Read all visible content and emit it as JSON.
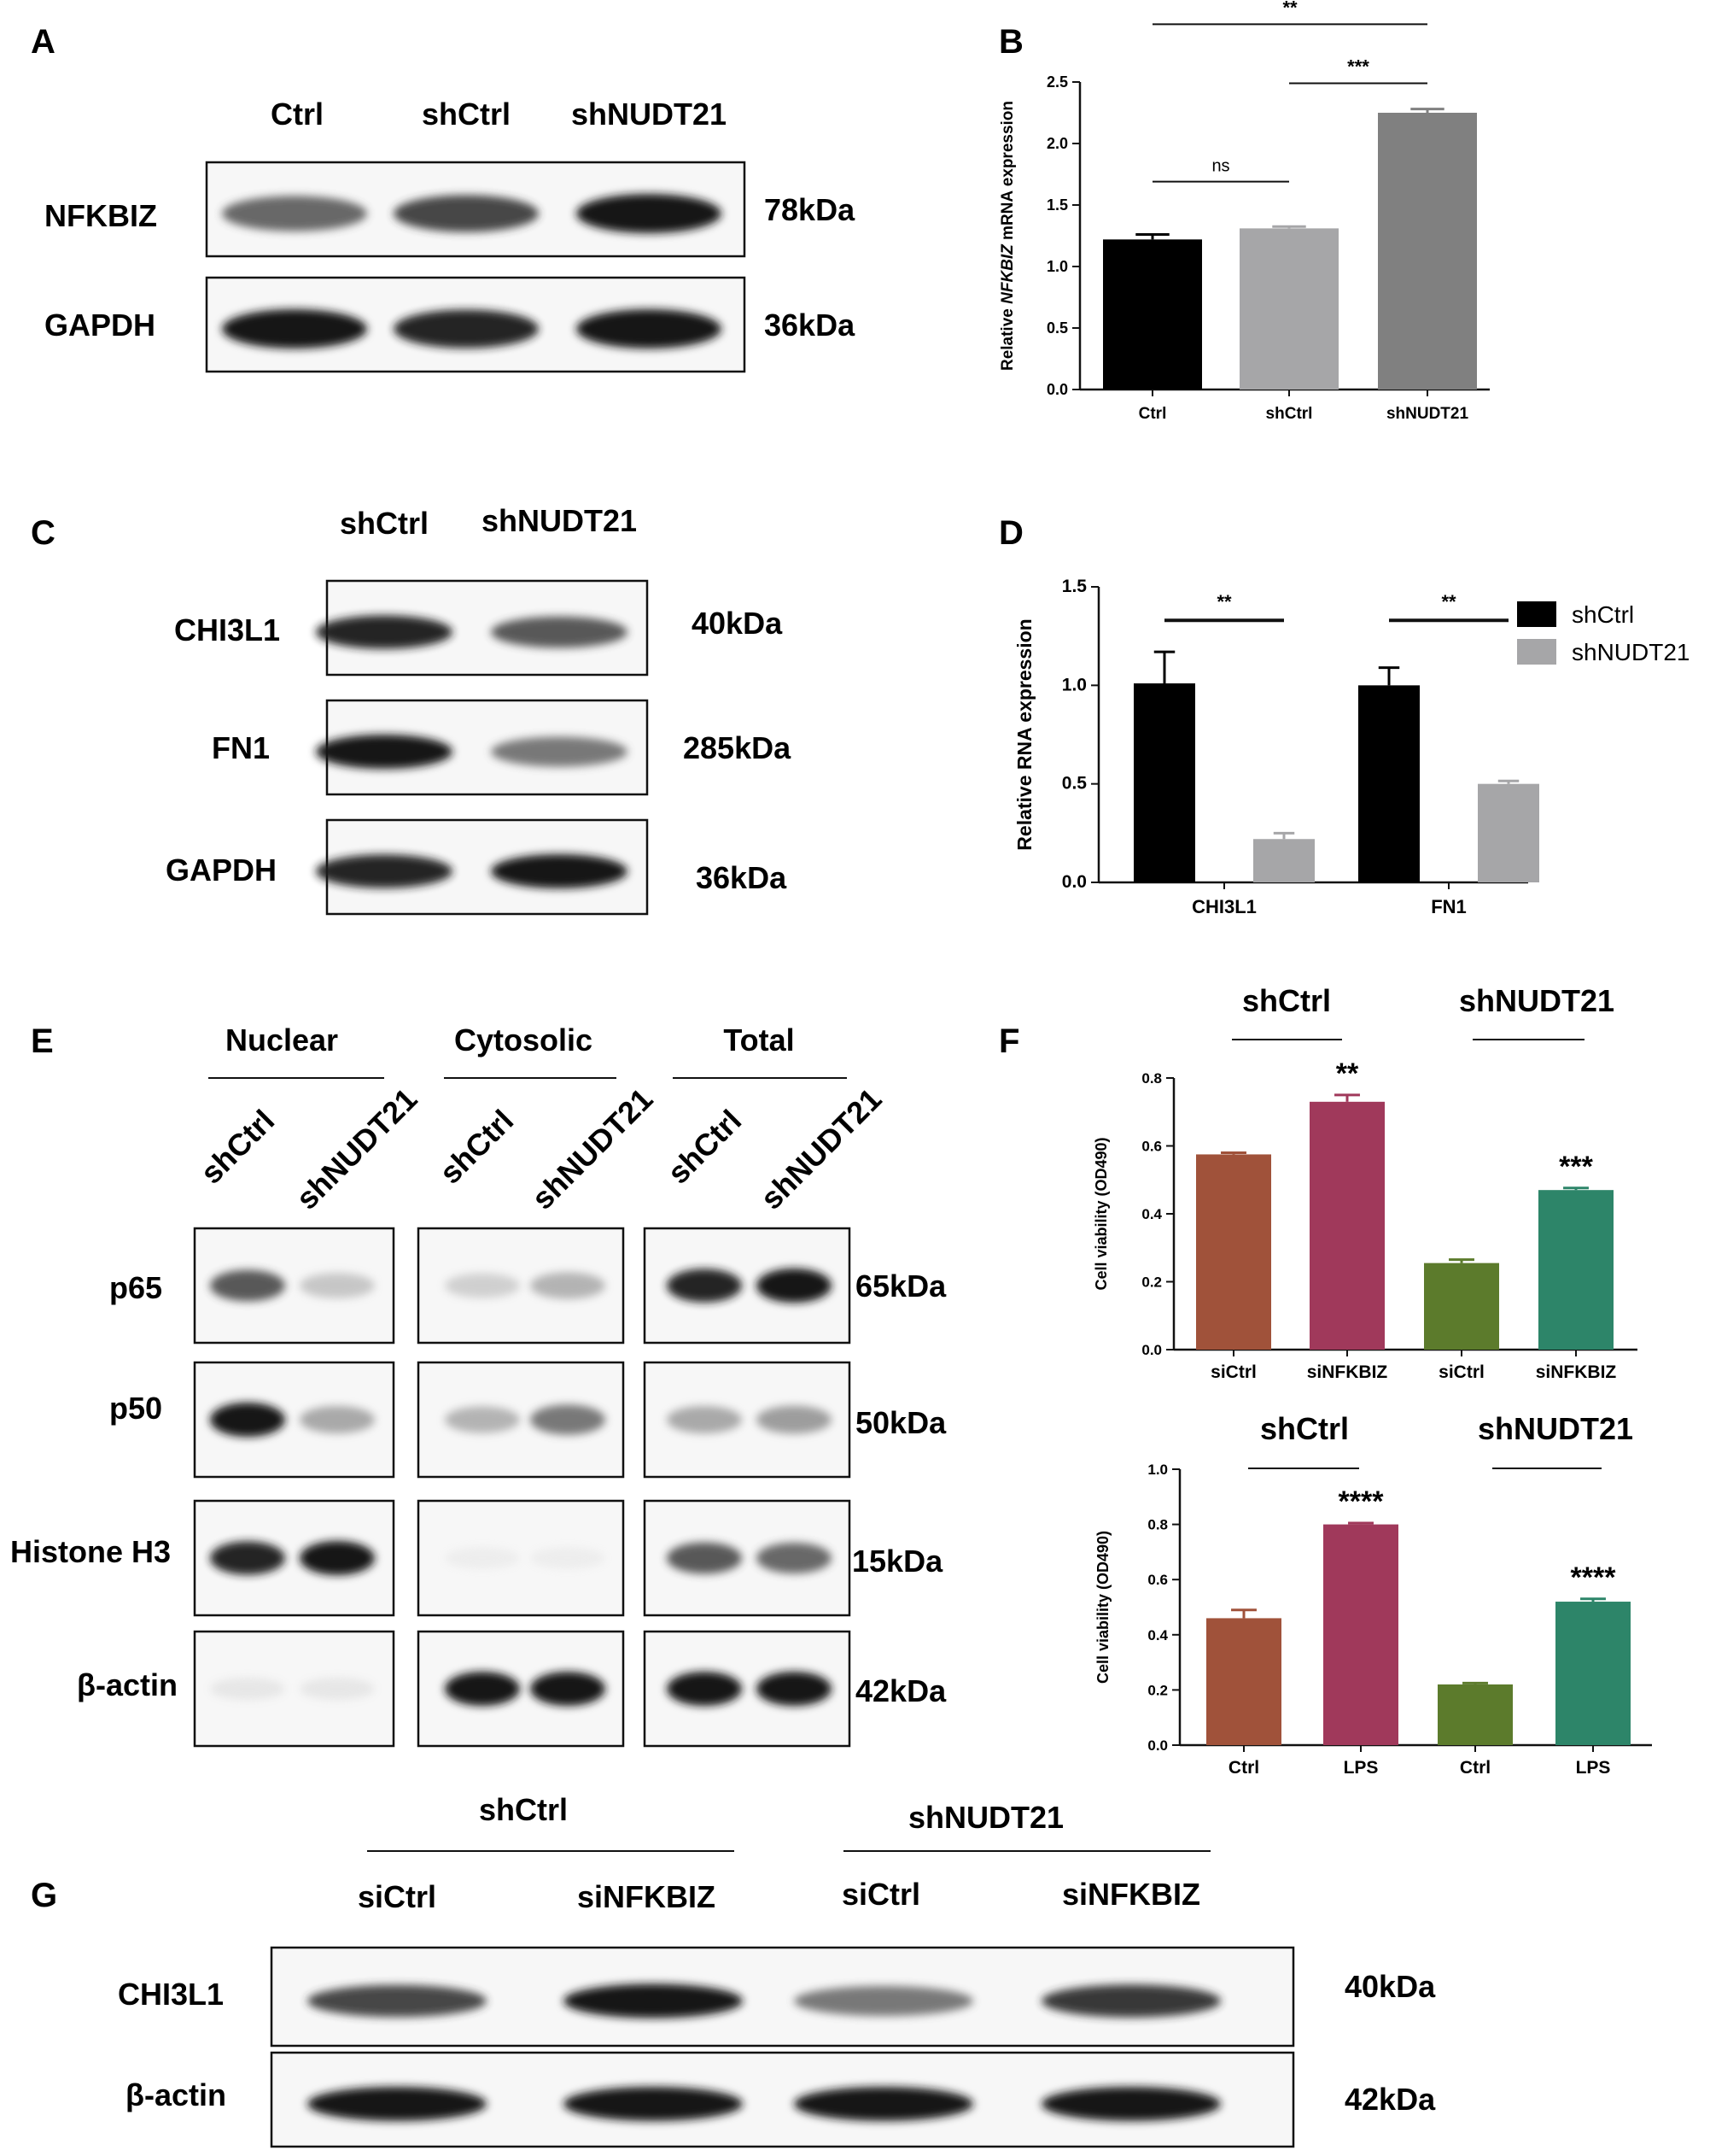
{
  "panels": {
    "A": "A",
    "B": "B",
    "C": "C",
    "D": "D",
    "E": "E",
    "F": "F",
    "G": "G"
  },
  "blotA": {
    "lanes": [
      "Ctrl",
      "shCtrl",
      "shNUDT21"
    ],
    "rows": [
      {
        "label": "NFKBIZ",
        "kda": "78kDa",
        "intensity": [
          0.75,
          0.85,
          1.0
        ]
      },
      {
        "label": "GAPDH",
        "kda": "36kDa",
        "intensity": [
          1.0,
          0.95,
          1.0
        ]
      }
    ]
  },
  "blotC": {
    "lanes": [
      "shCtrl",
      "shNUDT21"
    ],
    "rows": [
      {
        "label": "CHI3L1",
        "kda": "40kDa",
        "intensity": [
          0.95,
          0.8
        ]
      },
      {
        "label": "FN1",
        "kda": "285kDa",
        "intensity": [
          1.0,
          0.7
        ]
      },
      {
        "label": "GAPDH",
        "kda": "36kDa",
        "intensity": [
          0.95,
          1.0
        ]
      }
    ]
  },
  "blotE": {
    "groups": [
      "Nuclear",
      "Cytosolic",
      "Total"
    ],
    "lanes": [
      "shCtrl",
      "shNUDT21"
    ],
    "rows": [
      {
        "label": "p65",
        "kda": "65kDa",
        "intensity": [
          [
            0.8,
            0.35
          ],
          [
            0.3,
            0.45
          ],
          [
            0.95,
            1.0
          ]
        ]
      },
      {
        "label": "p50",
        "kda": "50kDa",
        "intensity": [
          [
            1.0,
            0.5
          ],
          [
            0.45,
            0.7
          ],
          [
            0.5,
            0.55
          ]
        ]
      },
      {
        "label": "Histone H3",
        "kda": "15kDa",
        "intensity": [
          [
            0.95,
            1.0
          ],
          [
            0.06,
            0.06
          ],
          [
            0.8,
            0.75
          ]
        ]
      },
      {
        "label": "β-actin",
        "kda": "42kDa",
        "intensity": [
          [
            0.12,
            0.12
          ],
          [
            1.0,
            1.0
          ],
          [
            1.0,
            1.0
          ]
        ]
      }
    ]
  },
  "blotG": {
    "groups": [
      "shCtrl",
      "shNUDT21"
    ],
    "lanes": [
      "siCtrl",
      "siNFKBIZ",
      "siCtrl",
      "siNFKBIZ"
    ],
    "rows": [
      {
        "label": "CHI3L1",
        "kda": "40kDa",
        "intensity": [
          0.85,
          1.0,
          0.7,
          0.9
        ]
      },
      {
        "label": "β-actin",
        "kda": "42kDa",
        "intensity": [
          1.0,
          1.0,
          1.0,
          1.0
        ]
      }
    ]
  },
  "chart_data": [
    {
      "panel": "B",
      "type": "bar",
      "categories": [
        "Ctrl",
        "shCtrl",
        "shNUDT21"
      ],
      "values": [
        1.22,
        1.31,
        2.25
      ],
      "errors": [
        0.04,
        0.015,
        0.03
      ],
      "colors": [
        "#000000",
        "#a6a6a8",
        "#808080"
      ],
      "ylabel": "Relative NFKBIZ mRNA expression",
      "ylim": [
        0,
        2.5
      ],
      "yticks": [
        "0.0",
        "0.5",
        "1.0",
        "1.5",
        "2.0",
        "2.5"
      ],
      "significance": [
        {
          "from": "Ctrl",
          "to": "shCtrl",
          "label": "ns",
          "y": 1.69
        },
        {
          "from": "shCtrl",
          "to": "shNUDT21",
          "label": "***",
          "y": 2.49
        },
        {
          "from": "Ctrl",
          "to": "shNUDT21",
          "label": "**",
          "y": 2.97
        }
      ]
    },
    {
      "panel": "D",
      "type": "bar",
      "categories": [
        "CHI3L1",
        "FN1"
      ],
      "series": [
        {
          "name": "shCtrl",
          "values": [
            1.01,
            1.0
          ],
          "errors": [
            0.16,
            0.09
          ],
          "color": "#000000"
        },
        {
          "name": "shNUDT21",
          "values": [
            0.22,
            0.5
          ],
          "errors": [
            0.03,
            0.015
          ],
          "color": "#a6a6a8"
        }
      ],
      "ylabel": "Relative RNA expression",
      "ylim": [
        0,
        1.5
      ],
      "yticks": [
        "0.0",
        "0.5",
        "1.0",
        "1.5"
      ],
      "legend": "top-right",
      "significance": [
        {
          "category": "CHI3L1",
          "label": "**",
          "y": 1.33
        },
        {
          "category": "FN1",
          "label": "**",
          "y": 1.33
        }
      ]
    },
    {
      "panel": "F-top",
      "type": "bar",
      "groups": [
        "shCtrl",
        "shNUDT21"
      ],
      "categories": [
        "siCtrl",
        "siNFKBIZ",
        "siCtrl",
        "siNFKBIZ"
      ],
      "values": [
        0.575,
        0.73,
        0.255,
        0.47
      ],
      "errors": [
        0.005,
        0.02,
        0.01,
        0.006
      ],
      "colors": [
        "#a0523a",
        "#a0395b",
        "#5c7b2c",
        "#2d8569"
      ],
      "ylabel": "Cell viability (OD490)",
      "ylim": [
        0,
        0.8
      ],
      "yticks": [
        "0.0",
        "0.2",
        "0.4",
        "0.6",
        "0.8"
      ],
      "significance": [
        {
          "index": 1,
          "label": "**"
        },
        {
          "index": 3,
          "label": "***"
        }
      ]
    },
    {
      "panel": "F-bottom",
      "type": "bar",
      "groups": [
        "shCtrl",
        "shNUDT21"
      ],
      "categories": [
        "Ctrl",
        "LPS",
        "Ctrl",
        "LPS"
      ],
      "values": [
        0.46,
        0.8,
        0.22,
        0.52
      ],
      "errors": [
        0.03,
        0.005,
        0.005,
        0.01
      ],
      "colors": [
        "#a0523a",
        "#a0395b",
        "#5c7b2c",
        "#2d8569"
      ],
      "ylabel": "Cell viability (OD490)",
      "ylim": [
        0,
        1.0
      ],
      "yticks": [
        "0.0",
        "0.2",
        "0.4",
        "0.6",
        "0.8",
        "1.0"
      ],
      "significance": [
        {
          "index": 1,
          "label": "****"
        },
        {
          "index": 3,
          "label": "****"
        }
      ]
    }
  ]
}
